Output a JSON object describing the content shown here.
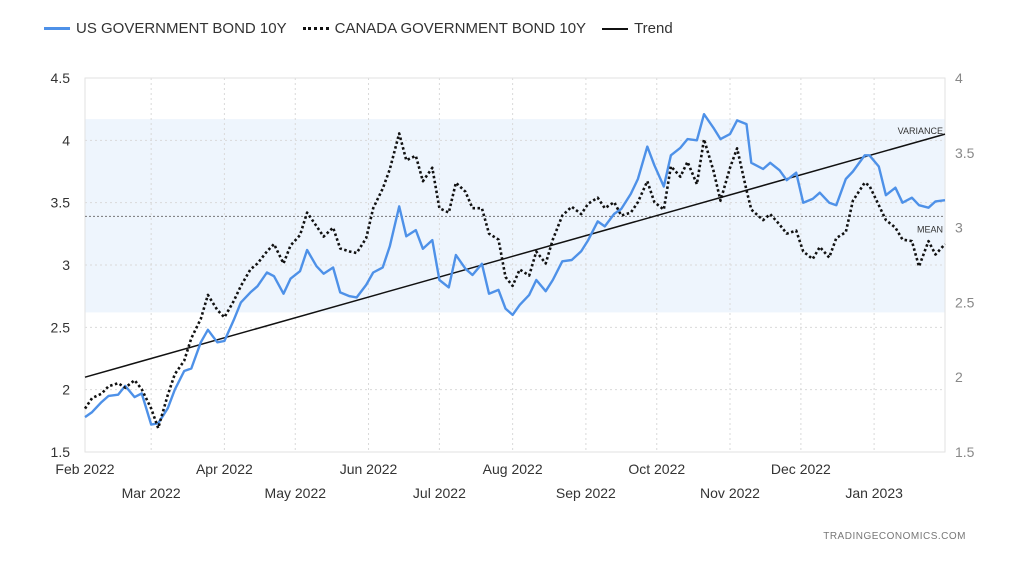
{
  "legend": {
    "us": "US GOVERNMENT BOND 10Y",
    "ca": "CANADA GOVERNMENT BOND 10Y",
    "trend": "Trend"
  },
  "watermark": "TRADINGECONOMICS.COM",
  "colors": {
    "us": "#4e91e8",
    "ca": "#111111",
    "trend": "#111111",
    "band": "#eef5fd",
    "grid": "#d9d9d9"
  },
  "chart_data": {
    "type": "line",
    "title": "",
    "x_ticks_row1": [
      "Feb 2022",
      "Apr 2022",
      "Jun 2022",
      "Aug 2022",
      "Oct 2022",
      "Dec 2022"
    ],
    "x_ticks_row2": [
      "Mar 2022",
      "May 2022",
      "Jul 2022",
      "Sep 2022",
      "Nov 2022",
      "Jan 2023"
    ],
    "left_axis": {
      "ticks": [
        "1.5",
        "2",
        "2.5",
        "3",
        "3.5",
        "4",
        "4.5"
      ],
      "ylim": [
        1.5,
        4.5
      ]
    },
    "right_axis": {
      "ticks": [
        "1.5",
        "2",
        "2.5",
        "3",
        "3.5",
        "4"
      ],
      "ylim": [
        1.5,
        4.0
      ]
    },
    "x_range": [
      "2022-02-01",
      "2023-01-31"
    ],
    "annotations": {
      "variance": "VARIANCE",
      "mean": "MEAN"
    },
    "band": [
      2.62,
      4.17
    ],
    "mean_line": 3.39,
    "trend_line": {
      "start": [
        "2022-02-01",
        2.1
      ],
      "end": [
        "2023-01-31",
        4.05
      ]
    },
    "series": [
      {
        "name": "US GOVERNMENT BOND 10Y",
        "axis": "left",
        "style": "solid",
        "points": [
          [
            "2022-02-01",
            1.78
          ],
          [
            "2022-02-04",
            1.82
          ],
          [
            "2022-02-08",
            1.9
          ],
          [
            "2022-02-11",
            1.95
          ],
          [
            "2022-02-15",
            1.96
          ],
          [
            "2022-02-18",
            2.03
          ],
          [
            "2022-02-22",
            1.94
          ],
          [
            "2022-02-25",
            1.97
          ],
          [
            "2022-03-01",
            1.72
          ],
          [
            "2022-03-04",
            1.73
          ],
          [
            "2022-03-08",
            1.85
          ],
          [
            "2022-03-11",
            2.0
          ],
          [
            "2022-03-15",
            2.15
          ],
          [
            "2022-03-18",
            2.17
          ],
          [
            "2022-03-22",
            2.38
          ],
          [
            "2022-03-25",
            2.48
          ],
          [
            "2022-03-29",
            2.38
          ],
          [
            "2022-04-01",
            2.39
          ],
          [
            "2022-04-05",
            2.56
          ],
          [
            "2022-04-08",
            2.7
          ],
          [
            "2022-04-12",
            2.78
          ],
          [
            "2022-04-15",
            2.83
          ],
          [
            "2022-04-19",
            2.94
          ],
          [
            "2022-04-22",
            2.91
          ],
          [
            "2022-04-26",
            2.77
          ],
          [
            "2022-04-29",
            2.89
          ],
          [
            "2022-05-03",
            2.95
          ],
          [
            "2022-05-06",
            3.12
          ],
          [
            "2022-05-10",
            2.99
          ],
          [
            "2022-05-13",
            2.93
          ],
          [
            "2022-05-17",
            2.98
          ],
          [
            "2022-05-20",
            2.78
          ],
          [
            "2022-05-24",
            2.75
          ],
          [
            "2022-05-27",
            2.74
          ],
          [
            "2022-05-31",
            2.84
          ],
          [
            "2022-06-03",
            2.94
          ],
          [
            "2022-06-07",
            2.98
          ],
          [
            "2022-06-10",
            3.15
          ],
          [
            "2022-06-14",
            3.47
          ],
          [
            "2022-06-17",
            3.23
          ],
          [
            "2022-06-21",
            3.28
          ],
          [
            "2022-06-24",
            3.13
          ],
          [
            "2022-06-28",
            3.2
          ],
          [
            "2022-07-01",
            2.88
          ],
          [
            "2022-07-05",
            2.82
          ],
          [
            "2022-07-08",
            3.08
          ],
          [
            "2022-07-12",
            2.97
          ],
          [
            "2022-07-15",
            2.92
          ],
          [
            "2022-07-19",
            3.01
          ],
          [
            "2022-07-22",
            2.77
          ],
          [
            "2022-07-26",
            2.8
          ],
          [
            "2022-07-29",
            2.65
          ],
          [
            "2022-08-01",
            2.6
          ],
          [
            "2022-08-04",
            2.68
          ],
          [
            "2022-08-08",
            2.76
          ],
          [
            "2022-08-11",
            2.88
          ],
          [
            "2022-08-15",
            2.79
          ],
          [
            "2022-08-18",
            2.88
          ],
          [
            "2022-08-22",
            3.03
          ],
          [
            "2022-08-26",
            3.04
          ],
          [
            "2022-08-30",
            3.11
          ],
          [
            "2022-09-02",
            3.2
          ],
          [
            "2022-09-06",
            3.35
          ],
          [
            "2022-09-09",
            3.31
          ],
          [
            "2022-09-13",
            3.41
          ],
          [
            "2022-09-16",
            3.45
          ],
          [
            "2022-09-20",
            3.57
          ],
          [
            "2022-09-23",
            3.69
          ],
          [
            "2022-09-27",
            3.95
          ],
          [
            "2022-09-30",
            3.8
          ],
          [
            "2022-10-04",
            3.63
          ],
          [
            "2022-10-07",
            3.88
          ],
          [
            "2022-10-11",
            3.94
          ],
          [
            "2022-10-14",
            4.01
          ],
          [
            "2022-10-18",
            4.0
          ],
          [
            "2022-10-21",
            4.21
          ],
          [
            "2022-10-25",
            4.1
          ],
          [
            "2022-10-28",
            4.01
          ],
          [
            "2022-11-01",
            4.05
          ],
          [
            "2022-11-04",
            4.16
          ],
          [
            "2022-11-08",
            4.13
          ],
          [
            "2022-11-10",
            3.82
          ],
          [
            "2022-11-15",
            3.77
          ],
          [
            "2022-11-18",
            3.82
          ],
          [
            "2022-11-22",
            3.76
          ],
          [
            "2022-11-25",
            3.68
          ],
          [
            "2022-11-29",
            3.74
          ],
          [
            "2022-12-02",
            3.5
          ],
          [
            "2022-12-06",
            3.53
          ],
          [
            "2022-12-09",
            3.58
          ],
          [
            "2022-12-13",
            3.5
          ],
          [
            "2022-12-16",
            3.48
          ],
          [
            "2022-12-20",
            3.69
          ],
          [
            "2022-12-23",
            3.75
          ],
          [
            "2022-12-28",
            3.88
          ],
          [
            "2022-12-30",
            3.88
          ],
          [
            "2023-01-03",
            3.79
          ],
          [
            "2023-01-06",
            3.56
          ],
          [
            "2023-01-10",
            3.62
          ],
          [
            "2023-01-13",
            3.5
          ],
          [
            "2023-01-17",
            3.54
          ],
          [
            "2023-01-20",
            3.48
          ],
          [
            "2023-01-24",
            3.46
          ],
          [
            "2023-01-27",
            3.51
          ],
          [
            "2023-01-31",
            3.52
          ]
        ]
      },
      {
        "name": "CANADA GOVERNMENT BOND 10Y",
        "axis": "right",
        "style": "dotted",
        "points": [
          [
            "2022-02-01",
            1.79
          ],
          [
            "2022-02-04",
            1.86
          ],
          [
            "2022-02-08",
            1.89
          ],
          [
            "2022-02-11",
            1.94
          ],
          [
            "2022-02-15",
            1.96
          ],
          [
            "2022-02-18",
            1.93
          ],
          [
            "2022-02-22",
            1.98
          ],
          [
            "2022-02-25",
            1.92
          ],
          [
            "2022-03-01",
            1.79
          ],
          [
            "2022-03-04",
            1.66
          ],
          [
            "2022-03-08",
            1.88
          ],
          [
            "2022-03-11",
            2.02
          ],
          [
            "2022-03-15",
            2.11
          ],
          [
            "2022-03-18",
            2.26
          ],
          [
            "2022-03-22",
            2.39
          ],
          [
            "2022-03-25",
            2.55
          ],
          [
            "2022-03-29",
            2.45
          ],
          [
            "2022-04-01",
            2.4
          ],
          [
            "2022-04-05",
            2.51
          ],
          [
            "2022-04-08",
            2.61
          ],
          [
            "2022-04-12",
            2.72
          ],
          [
            "2022-04-15",
            2.76
          ],
          [
            "2022-04-19",
            2.84
          ],
          [
            "2022-04-22",
            2.89
          ],
          [
            "2022-04-26",
            2.76
          ],
          [
            "2022-04-29",
            2.88
          ],
          [
            "2022-05-03",
            2.95
          ],
          [
            "2022-05-06",
            3.1
          ],
          [
            "2022-05-10",
            3.01
          ],
          [
            "2022-05-13",
            2.94
          ],
          [
            "2022-05-17",
            3.0
          ],
          [
            "2022-05-20",
            2.86
          ],
          [
            "2022-05-24",
            2.84
          ],
          [
            "2022-05-27",
            2.83
          ],
          [
            "2022-05-31",
            2.93
          ],
          [
            "2022-06-03",
            3.13
          ],
          [
            "2022-06-07",
            3.26
          ],
          [
            "2022-06-10",
            3.39
          ],
          [
            "2022-06-14",
            3.63
          ],
          [
            "2022-06-17",
            3.45
          ],
          [
            "2022-06-21",
            3.48
          ],
          [
            "2022-06-24",
            3.31
          ],
          [
            "2022-06-28",
            3.4
          ],
          [
            "2022-07-01",
            3.13
          ],
          [
            "2022-07-05",
            3.1
          ],
          [
            "2022-07-08",
            3.3
          ],
          [
            "2022-07-12",
            3.24
          ],
          [
            "2022-07-15",
            3.13
          ],
          [
            "2022-07-19",
            3.13
          ],
          [
            "2022-07-22",
            2.96
          ],
          [
            "2022-07-26",
            2.92
          ],
          [
            "2022-07-29",
            2.67
          ],
          [
            "2022-08-01",
            2.61
          ],
          [
            "2022-08-04",
            2.72
          ],
          [
            "2022-08-08",
            2.68
          ],
          [
            "2022-08-11",
            2.84
          ],
          [
            "2022-08-15",
            2.76
          ],
          [
            "2022-08-18",
            2.92
          ],
          [
            "2022-08-22",
            3.08
          ],
          [
            "2022-08-26",
            3.14
          ],
          [
            "2022-08-30",
            3.09
          ],
          [
            "2022-09-02",
            3.16
          ],
          [
            "2022-09-06",
            3.2
          ],
          [
            "2022-09-09",
            3.13
          ],
          [
            "2022-09-13",
            3.17
          ],
          [
            "2022-09-16",
            3.08
          ],
          [
            "2022-09-20",
            3.1
          ],
          [
            "2022-09-23",
            3.17
          ],
          [
            "2022-09-27",
            3.31
          ],
          [
            "2022-09-30",
            3.17
          ],
          [
            "2022-10-04",
            3.12
          ],
          [
            "2022-10-07",
            3.41
          ],
          [
            "2022-10-11",
            3.34
          ],
          [
            "2022-10-14",
            3.44
          ],
          [
            "2022-10-18",
            3.29
          ],
          [
            "2022-10-21",
            3.59
          ],
          [
            "2022-10-25",
            3.38
          ],
          [
            "2022-10-28",
            3.18
          ],
          [
            "2022-11-01",
            3.4
          ],
          [
            "2022-11-04",
            3.53
          ],
          [
            "2022-11-08",
            3.25
          ],
          [
            "2022-11-10",
            3.12
          ],
          [
            "2022-11-15",
            3.05
          ],
          [
            "2022-11-18",
            3.09
          ],
          [
            "2022-11-22",
            3.02
          ],
          [
            "2022-11-25",
            2.96
          ],
          [
            "2022-11-29",
            2.98
          ],
          [
            "2022-12-02",
            2.84
          ],
          [
            "2022-12-06",
            2.79
          ],
          [
            "2022-12-09",
            2.87
          ],
          [
            "2022-12-13",
            2.8
          ],
          [
            "2022-12-16",
            2.93
          ],
          [
            "2022-12-20",
            2.97
          ],
          [
            "2022-12-23",
            3.18
          ],
          [
            "2022-12-28",
            3.3
          ],
          [
            "2022-12-30",
            3.28
          ],
          [
            "2023-01-03",
            3.15
          ],
          [
            "2023-01-06",
            3.05
          ],
          [
            "2023-01-10",
            3.0
          ],
          [
            "2023-01-13",
            2.92
          ],
          [
            "2023-01-17",
            2.91
          ],
          [
            "2023-01-20",
            2.74
          ],
          [
            "2023-01-24",
            2.91
          ],
          [
            "2023-01-27",
            2.82
          ],
          [
            "2023-01-31",
            2.89
          ]
        ]
      }
    ]
  }
}
